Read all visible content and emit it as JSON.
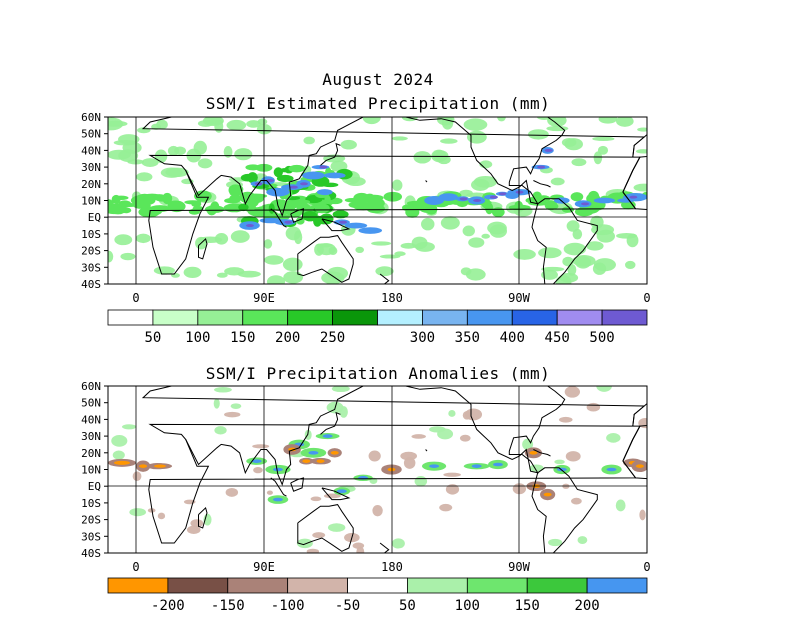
{
  "header": {
    "title": "August 2024",
    "panel1_title": "SSM/I Estimated Precipitation (mm)",
    "panel2_title": "SSM/I Precipitation Anomalies (mm)"
  },
  "axes": {
    "lat_labels": [
      "60N",
      "50N",
      "40N",
      "30N",
      "20N",
      "10N",
      "EQ",
      "10S",
      "20S",
      "30S",
      "40S"
    ],
    "lon_labels": [
      "0",
      "90E",
      "180",
      "90W",
      "0"
    ]
  },
  "colorbar1": {
    "colors": [
      "#ffffff",
      "#c8ffc8",
      "#96f096",
      "#5ae65a",
      "#28c828",
      "#0a960a",
      "#b4f0ff",
      "#78b4f0",
      "#4896f0",
      "#2864e6",
      "#a08cf0",
      "#6e5ad2"
    ],
    "labels": [
      "50",
      "100",
      "150",
      "200",
      "250",
      "300",
      "350",
      "400",
      "450",
      "500"
    ]
  },
  "colorbar2": {
    "colors": [
      "#ff9600",
      "#785046",
      "#aa8278",
      "#d2b4aa",
      "#ffffff",
      "#aaf0aa",
      "#6ee66e",
      "#3cc83c",
      "#4696f0"
    ],
    "labels": [
      "-200",
      "-150",
      "-100",
      "-50",
      "50",
      "100",
      "150",
      "200"
    ]
  },
  "map_layers": {
    "panel1_wet_colors": [
      "#96f096",
      "#5ae65a",
      "#28c828",
      "#4896f0",
      "#6e5ad2"
    ],
    "panel2_positive_colors": [
      "#aaf0aa",
      "#6ee66e",
      "#4696f0"
    ],
    "panel2_negative_colors": [
      "#d2b4aa",
      "#aa8278",
      "#ff9600"
    ]
  }
}
